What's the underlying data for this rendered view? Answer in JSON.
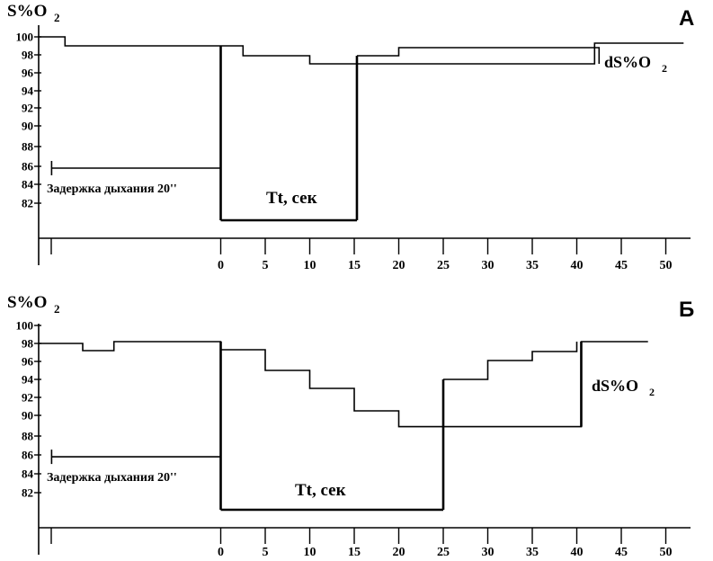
{
  "chart_data": [
    {
      "type": "line",
      "panel": "А",
      "ylabel": "S%O",
      "ylabel_sub": "2",
      "xlabel": "Tt, сек",
      "ytick_labels": [
        "100",
        "98",
        "96",
        "94",
        "92",
        "90",
        "88",
        "86",
        "84",
        "82"
      ],
      "xtick_labels": [
        "0",
        "5",
        "10",
        "15",
        "20",
        "25",
        "30",
        "35",
        "40",
        "45",
        "50"
      ],
      "series": [
        {
          "style": "step",
          "points": [
            [
              -20.5,
              100
            ],
            [
              -17.5,
              100
            ],
            [
              -17.5,
              99
            ],
            [
              2.5,
              99
            ],
            [
              2.5,
              97.9
            ],
            [
              10,
              97.9
            ],
            [
              10,
              97
            ],
            [
              42,
              97
            ],
            [
              42,
              99.3
            ],
            [
              52,
              99.3
            ]
          ]
        },
        {
          "style": "step",
          "points": [
            [
              15.3,
              97.9
            ],
            [
              20,
              97.9
            ],
            [
              20,
              98.8
            ],
            [
              42.5,
              98.8
            ],
            [
              42.5,
              97
            ]
          ]
        },
        {
          "style": "segments",
          "width": 2,
          "segments": [
            [
              [
                0,
                99
              ],
              [
                0,
                81
              ]
            ],
            [
              [
                0,
                81
              ],
              [
                15.3,
                81
              ]
            ],
            [
              [
                15.3,
                81
              ],
              [
                15.3,
                97.9
              ]
            ]
          ]
        }
      ],
      "breath_hold": {
        "label": "Задержка дыхания 20''",
        "start": -19,
        "end": 0,
        "level": 85.8
      },
      "delta_label": "dS%O",
      "delta_sub": "2"
    },
    {
      "type": "line",
      "panel": "Б",
      "ylabel": "S%O",
      "ylabel_sub": "2",
      "xlabel": "Tt, сек",
      "ytick_labels": [
        "100",
        "98",
        "96",
        "94",
        "92",
        "90",
        "88",
        "86",
        "84",
        "82"
      ],
      "xtick_labels": [
        "0",
        "5",
        "10",
        "15",
        "20",
        "25",
        "30",
        "35",
        "40",
        "45",
        "50"
      ],
      "series": [
        {
          "style": "step",
          "points": [
            [
              -20.5,
              98
            ],
            [
              -15.5,
              98
            ],
            [
              -15.5,
              97.2
            ],
            [
              -12,
              97.2
            ],
            [
              -12,
              98.2
            ],
            [
              0,
              98.2
            ],
            [
              0,
              97.3
            ],
            [
              5,
              97.3
            ],
            [
              5,
              95
            ],
            [
              10,
              95
            ],
            [
              10,
              93
            ],
            [
              15,
              93
            ],
            [
              15,
              90.5
            ],
            [
              20,
              90.5
            ],
            [
              20,
              88.9
            ],
            [
              40.5,
              88.9
            ],
            [
              40.5,
              98.2
            ],
            [
              48,
              98.2
            ]
          ]
        },
        {
          "style": "step",
          "points": [
            [
              25,
              94
            ],
            [
              30,
              94
            ],
            [
              30,
              96.1
            ],
            [
              35,
              96.1
            ],
            [
              35,
              97.1
            ],
            [
              40,
              97.1
            ],
            [
              40,
              98.2
            ]
          ]
        },
        {
          "style": "segments",
          "width": 2,
          "segments": [
            [
              [
                0,
                98.2
              ],
              [
                0,
                81
              ]
            ],
            [
              [
                0,
                81
              ],
              [
                25,
                81
              ]
            ],
            [
              [
                25,
                81
              ],
              [
                25,
                94
              ]
            ],
            [
              [
                40.5,
                88.9
              ],
              [
                40.5,
                98.2
              ]
            ]
          ]
        }
      ],
      "breath_hold": {
        "label": "Задержка дыхания 20''",
        "start": -19,
        "end": 0,
        "level": 85.8
      },
      "delta_label": "dS%O",
      "delta_sub": "2"
    }
  ]
}
